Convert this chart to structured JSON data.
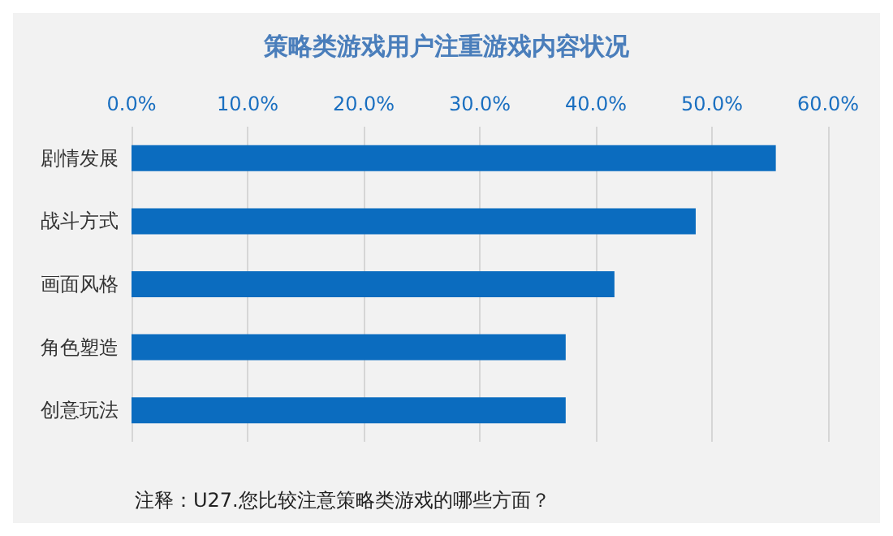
{
  "chart_data": {
    "type": "bar",
    "orientation": "horizontal",
    "title": "策略类游戏用户注重游戏内容状况",
    "categories": [
      "剧情发展",
      "战斗方式",
      "画面风格",
      "角色塑造",
      "创意玩法"
    ],
    "values": [
      55.5,
      48.6,
      41.6,
      37.4,
      37.4
    ],
    "color": "#0b6cbf",
    "xlim": [
      0,
      60
    ],
    "xticks": [
      {
        "value": 0,
        "label": "0.0%"
      },
      {
        "value": 10,
        "label": "10.0%"
      },
      {
        "value": 20,
        "label": "20.0%"
      },
      {
        "value": 30,
        "label": "30.0%"
      },
      {
        "value": 40,
        "label": "40.0%"
      },
      {
        "value": 50,
        "label": "50.0%"
      },
      {
        "value": 60,
        "label": "60.0%"
      }
    ],
    "grid": "x",
    "annotations": [
      "注释：U27.您比较注意策略类游戏的哪些方面？"
    ]
  }
}
